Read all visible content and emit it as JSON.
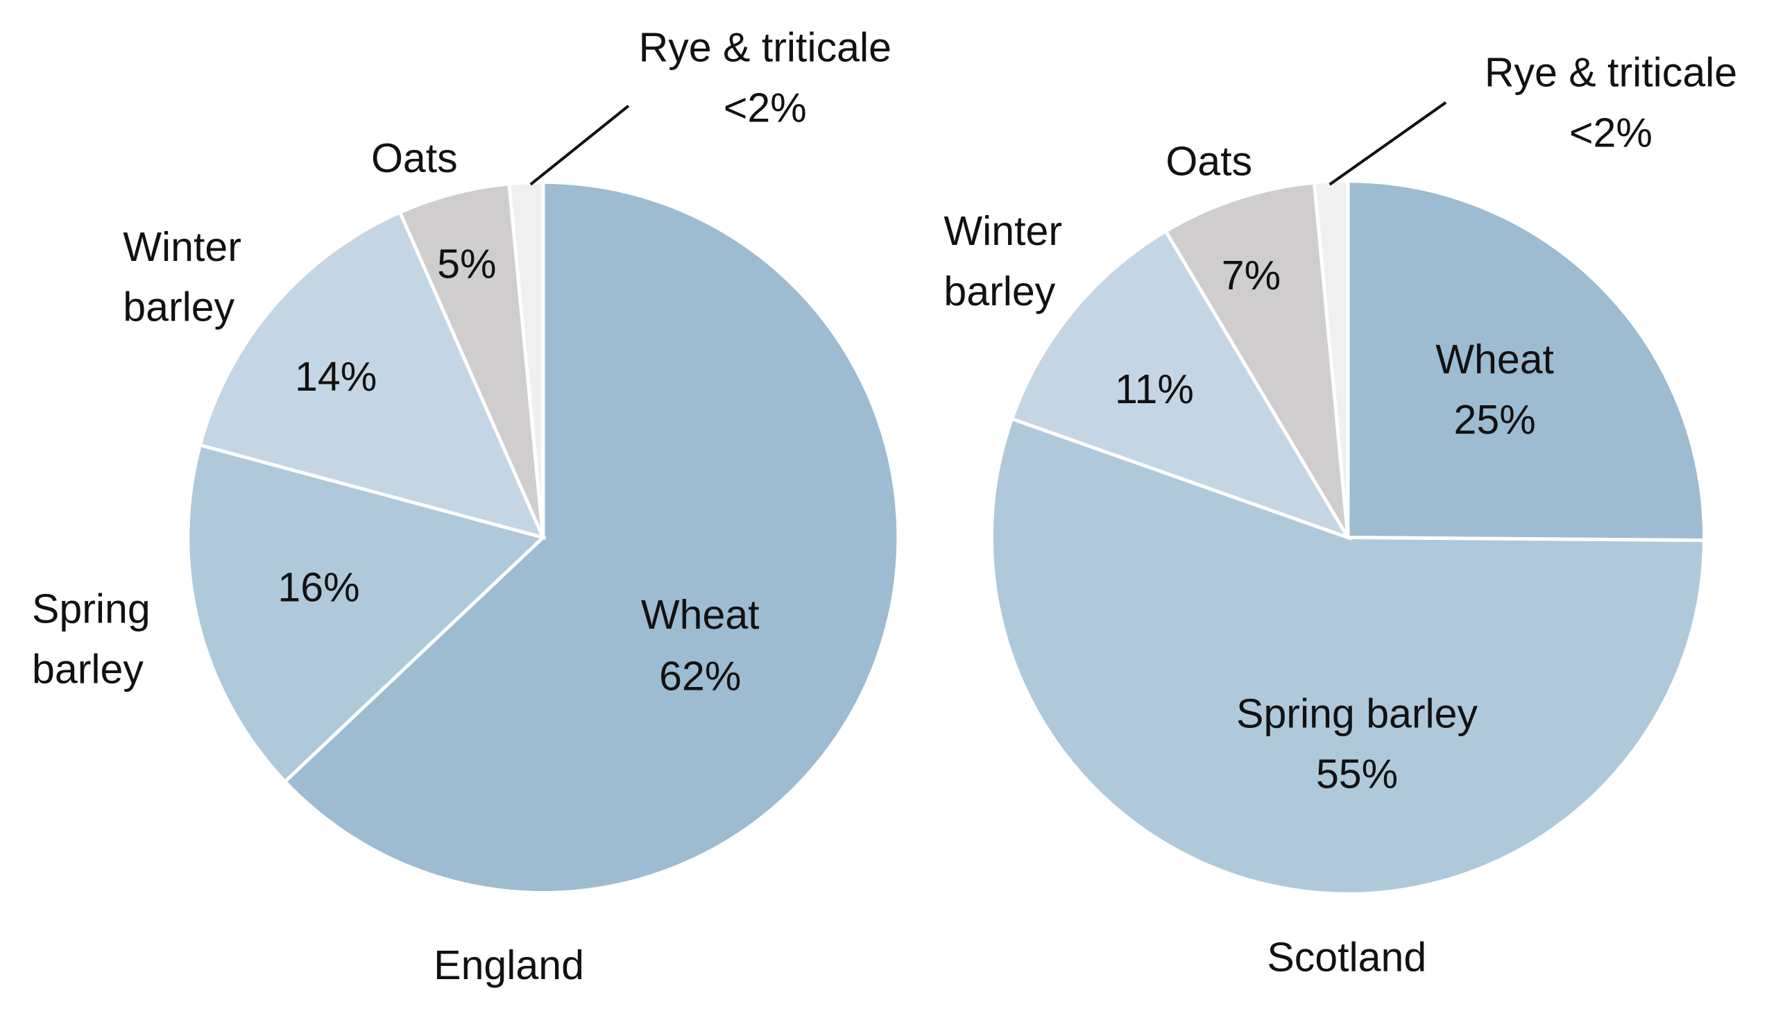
{
  "chart_data": [
    {
      "type": "pie",
      "title": "England",
      "start": "top, clockwise",
      "slices": [
        {
          "name": "Wheat",
          "value": 62,
          "label": "62%",
          "color": "#9dbbd1"
        },
        {
          "name": "Spring barley",
          "value": 16,
          "label": "16%",
          "color": "#afc9da"
        },
        {
          "name": "Winter barley",
          "value": 14,
          "label": "14%",
          "color": "#c4d6e3"
        },
        {
          "name": "Oats",
          "value": 5,
          "label": "5%",
          "color": "#d0cdcf"
        },
        {
          "name": "Rye & triticale",
          "value": 1.5,
          "label": "<2%",
          "color": "#f0f0f0"
        }
      ]
    },
    {
      "type": "pie",
      "title": "Scotland",
      "start": "top, clockwise",
      "slices": [
        {
          "name": "Wheat",
          "value": 25,
          "label": "25%",
          "color": "#9dbbd1"
        },
        {
          "name": "Spring barley",
          "value": 55,
          "label": "55%",
          "color": "#afc9da"
        },
        {
          "name": "Winter barley",
          "value": 11,
          "label": "11%",
          "color": "#c4d6e3"
        },
        {
          "name": "Oats",
          "value": 7,
          "label": "7%",
          "color": "#d0cdcf"
        },
        {
          "name": "Rye & triticale",
          "value": 1.5,
          "label": "<2%",
          "color": "#f0f0f0"
        }
      ]
    }
  ],
  "labels": {
    "wheat": "Wheat",
    "spring": [
      "Spring",
      "barley"
    ],
    "spring_one_line": "Spring barley",
    "winter": [
      "Winter",
      "barley"
    ],
    "oats": "Oats",
    "rye": "Rye & triticale"
  }
}
